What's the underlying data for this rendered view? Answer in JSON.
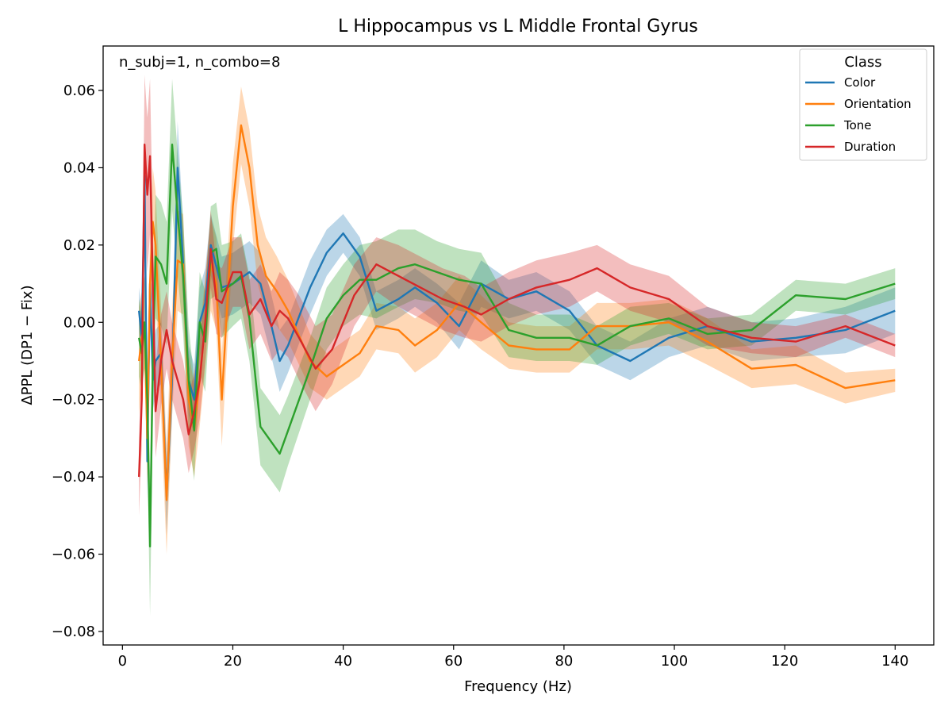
{
  "chart_data": {
    "type": "line",
    "title": "L Hippocampus vs L Middle Frontal Gyrus",
    "xlabel": "Frequency (Hz)",
    "ylabel": "ΔPPL (DP1 − Fix)",
    "annotation": "n_subj=1, n_combo=8",
    "xlim": [
      -3.5,
      147
    ],
    "ylim": [
      -0.0835,
      0.0715
    ],
    "xticks": [
      0,
      20,
      40,
      60,
      80,
      100,
      120,
      140
    ],
    "yticks": [
      -0.08,
      -0.06,
      -0.04,
      -0.02,
      0.0,
      0.02,
      0.04,
      0.06
    ],
    "ytick_labels": [
      "−0.08",
      "−0.06",
      "−0.04",
      "−0.02",
      "0.00",
      "0.02",
      "0.04",
      "0.06"
    ],
    "grid": false,
    "legend": {
      "title": "Class",
      "placement": "top-right"
    },
    "band_opacity": 0.3,
    "series": [
      {
        "name": "Color",
        "color": "#1f77b4",
        "x": [
          3.0,
          3.5,
          4.0,
          4.5,
          5.0,
          5.5,
          6.0,
          7.0,
          8.0,
          9.0,
          10.0,
          11.0,
          12.0,
          13.0,
          14.0,
          15.0,
          16.0,
          18.0,
          20.0,
          23.0,
          25.0,
          27.0,
          28.5,
          30.0,
          34.0,
          37.0,
          40.0,
          43.0,
          46.0,
          50.0,
          53.0,
          57.0,
          61.0,
          65.0,
          70.0,
          75.0,
          81.0,
          86.0,
          92.0,
          99.0,
          106.0,
          114.0,
          122.0,
          131.0,
          140.0
        ],
        "y": [
          0.003,
          -0.004,
          0.038,
          -0.036,
          0.01,
          -0.015,
          -0.01,
          -0.008,
          -0.045,
          -0.014,
          0.04,
          0.015,
          -0.015,
          -0.02,
          0.0,
          0.005,
          0.02,
          0.009,
          0.01,
          0.013,
          0.01,
          -0.001,
          -0.01,
          -0.006,
          0.009,
          0.018,
          0.023,
          0.017,
          0.003,
          0.006,
          0.009,
          0.005,
          -0.001,
          0.01,
          0.006,
          0.008,
          0.003,
          -0.006,
          -0.01,
          -0.004,
          -0.001,
          -0.005,
          -0.004,
          -0.002,
          0.003
        ],
        "err": [
          0.006,
          0.007,
          0.01,
          0.01,
          0.008,
          0.008,
          0.008,
          0.008,
          0.01,
          0.01,
          0.012,
          0.01,
          0.009,
          0.009,
          0.009,
          0.009,
          0.008,
          0.008,
          0.008,
          0.008,
          0.008,
          0.008,
          0.008,
          0.007,
          0.007,
          0.006,
          0.005,
          0.005,
          0.005,
          0.005,
          0.005,
          0.005,
          0.006,
          0.006,
          0.005,
          0.005,
          0.005,
          0.005,
          0.005,
          0.005,
          0.005,
          0.005,
          0.005,
          0.006,
          0.006
        ]
      },
      {
        "name": "Orientation",
        "color": "#ff7f0e",
        "x": [
          3.0,
          3.5,
          4.0,
          4.5,
          5.0,
          5.5,
          6.0,
          7.0,
          8.0,
          9.0,
          10.0,
          11.0,
          12.0,
          13.0,
          14.0,
          15.0,
          16.0,
          17.0,
          18.0,
          20.0,
          21.5,
          23.0,
          24.5,
          26.0,
          28.0,
          30.0,
          34.0,
          37.0,
          40.0,
          43.0,
          46.0,
          50.0,
          53.0,
          57.0,
          61.0,
          65.0,
          70.0,
          75.0,
          81.0,
          86.0,
          92.0,
          99.0,
          106.0,
          114.0,
          122.0,
          131.0,
          140.0
        ],
        "y": [
          -0.01,
          -0.004,
          0.0,
          -0.03,
          0.01,
          0.026,
          0.02,
          -0.01,
          -0.046,
          -0.01,
          0.016,
          0.015,
          -0.02,
          -0.028,
          -0.015,
          0.0,
          0.015,
          0.01,
          -0.02,
          0.03,
          0.051,
          0.04,
          0.02,
          0.012,
          0.008,
          0.003,
          -0.01,
          -0.014,
          -0.011,
          -0.008,
          -0.001,
          -0.002,
          -0.006,
          -0.002,
          0.005,
          0.0,
          -0.006,
          -0.007,
          -0.007,
          -0.001,
          -0.001,
          0.0,
          -0.005,
          -0.012,
          -0.011,
          -0.017,
          -0.015
        ],
        "err": [
          0.014,
          0.012,
          0.012,
          0.012,
          0.014,
          0.014,
          0.014,
          0.014,
          0.014,
          0.014,
          0.013,
          0.013,
          0.012,
          0.012,
          0.012,
          0.012,
          0.012,
          0.012,
          0.012,
          0.011,
          0.01,
          0.01,
          0.01,
          0.01,
          0.009,
          0.008,
          0.007,
          0.006,
          0.006,
          0.006,
          0.006,
          0.006,
          0.007,
          0.007,
          0.007,
          0.007,
          0.006,
          0.006,
          0.006,
          0.006,
          0.006,
          0.006,
          0.006,
          0.005,
          0.005,
          0.004,
          0.003
        ]
      },
      {
        "name": "Tone",
        "color": "#2ca02c",
        "x": [
          3.0,
          3.5,
          4.0,
          4.5,
          5.0,
          5.5,
          6.0,
          7.0,
          8.0,
          9.0,
          10.0,
          11.0,
          12.0,
          13.0,
          14.0,
          15.0,
          16.0,
          17.0,
          18.0,
          20.0,
          21.5,
          23.0,
          25.0,
          27.0,
          28.5,
          30.0,
          34.0,
          37.0,
          40.0,
          43.0,
          46.0,
          50.0,
          53.0,
          57.0,
          61.0,
          65.0,
          70.0,
          75.0,
          81.0,
          86.0,
          92.0,
          99.0,
          106.0,
          114.0,
          122.0,
          131.0,
          140.0
        ],
        "y": [
          -0.004,
          -0.008,
          0.0,
          -0.02,
          -0.058,
          -0.01,
          0.017,
          0.015,
          0.01,
          0.046,
          0.028,
          0.012,
          -0.015,
          -0.028,
          0.0,
          -0.005,
          0.018,
          0.019,
          0.008,
          0.01,
          0.012,
          0.001,
          -0.027,
          -0.031,
          -0.034,
          -0.028,
          -0.012,
          0.001,
          0.007,
          0.011,
          0.011,
          0.014,
          0.015,
          0.013,
          0.011,
          0.01,
          -0.002,
          -0.004,
          -0.004,
          -0.006,
          -0.001,
          0.001,
          -0.003,
          -0.002,
          0.007,
          0.006,
          0.01
        ],
        "err": [
          0.01,
          0.01,
          0.012,
          0.014,
          0.018,
          0.016,
          0.016,
          0.016,
          0.016,
          0.017,
          0.016,
          0.015,
          0.014,
          0.013,
          0.013,
          0.013,
          0.012,
          0.012,
          0.012,
          0.011,
          0.011,
          0.011,
          0.01,
          0.01,
          0.01,
          0.009,
          0.008,
          0.008,
          0.008,
          0.009,
          0.01,
          0.01,
          0.009,
          0.008,
          0.008,
          0.008,
          0.007,
          0.006,
          0.006,
          0.005,
          0.005,
          0.004,
          0.004,
          0.004,
          0.004,
          0.004,
          0.004
        ]
      },
      {
        "name": "Duration",
        "color": "#d62728",
        "x": [
          3.0,
          3.5,
          4.0,
          4.5,
          5.0,
          5.5,
          6.0,
          7.0,
          8.0,
          9.0,
          10.0,
          11.0,
          12.0,
          13.0,
          14.0,
          15.0,
          16.0,
          17.0,
          18.0,
          20.0,
          21.5,
          23.0,
          25.0,
          27.0,
          28.5,
          30.0,
          32.0,
          35.0,
          38.0,
          42.0,
          46.0,
          50.0,
          54.0,
          58.0,
          62.0,
          65.0,
          70.0,
          75.0,
          81.0,
          86.0,
          92.0,
          99.0,
          106.0,
          114.0,
          122.0,
          131.0,
          140.0
        ],
        "y": [
          -0.04,
          -0.02,
          0.046,
          0.033,
          0.043,
          0.01,
          -0.023,
          -0.01,
          -0.002,
          -0.01,
          -0.015,
          -0.02,
          -0.029,
          -0.023,
          -0.015,
          0.0,
          0.019,
          0.006,
          0.005,
          0.013,
          0.013,
          0.002,
          0.006,
          -0.001,
          0.003,
          0.001,
          -0.004,
          -0.012,
          -0.007,
          0.007,
          0.015,
          0.012,
          0.009,
          0.006,
          0.004,
          0.002,
          0.006,
          0.009,
          0.011,
          0.014,
          0.009,
          0.006,
          -0.001,
          -0.004,
          -0.005,
          -0.001,
          -0.006
        ],
        "err": [
          0.01,
          0.012,
          0.018,
          0.02,
          0.02,
          0.016,
          0.012,
          0.012,
          0.01,
          0.01,
          0.01,
          0.01,
          0.01,
          0.01,
          0.01,
          0.01,
          0.01,
          0.009,
          0.009,
          0.009,
          0.009,
          0.009,
          0.009,
          0.009,
          0.01,
          0.01,
          0.011,
          0.011,
          0.009,
          0.008,
          0.007,
          0.008,
          0.008,
          0.008,
          0.008,
          0.007,
          0.007,
          0.007,
          0.007,
          0.006,
          0.006,
          0.006,
          0.005,
          0.004,
          0.004,
          0.003,
          0.003
        ]
      }
    ]
  }
}
